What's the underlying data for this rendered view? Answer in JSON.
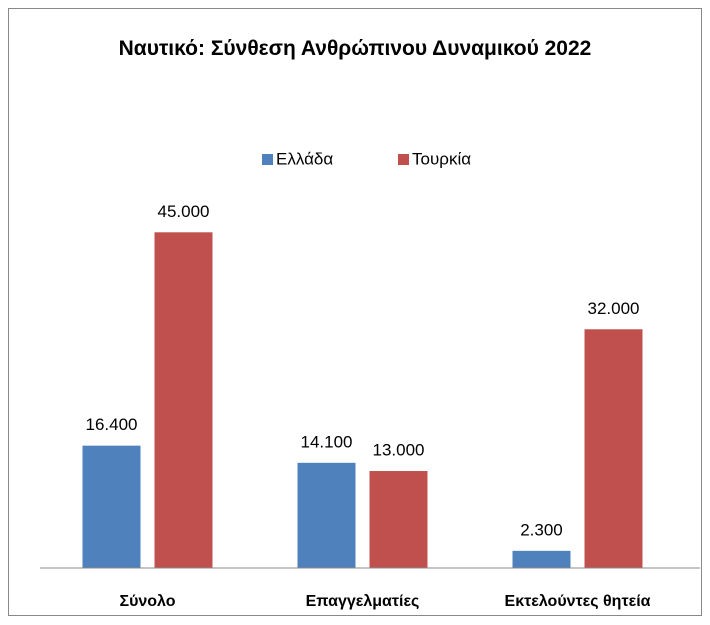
{
  "chart_data": {
    "type": "bar",
    "title": "Ναυτικό: Σύνθεση Ανθρώπινου Δυναμικού 2022",
    "categories": [
      "Σύνολο",
      "Επαγγελματίες",
      "Εκτελούντες θητεία"
    ],
    "series": [
      {
        "name": "Ελλάδα",
        "color": "#4f81bd",
        "values": [
          16400,
          14100,
          2300
        ],
        "value_labels": [
          "16.400",
          "14.100",
          "2.300"
        ]
      },
      {
        "name": "Τουρκία",
        "color": "#c0504d",
        "values": [
          45000,
          13000,
          32000
        ],
        "value_labels": [
          "45.000",
          "13.000",
          "32.000"
        ]
      }
    ],
    "ylim": [
      0,
      50000
    ],
    "legend": "top"
  }
}
